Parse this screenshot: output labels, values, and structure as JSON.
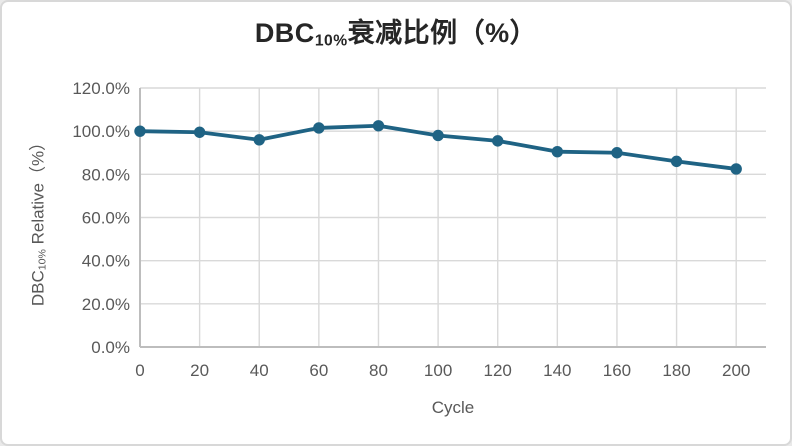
{
  "chart": {
    "title": {
      "prefix": "DBC",
      "sub": "10%",
      "suffix": "衰减比例（%）"
    },
    "y_axis_title": {
      "prefix": "DBC",
      "sub": "10%",
      "suffix": " Relative（%）"
    },
    "x_axis_title": "Cycle"
  },
  "colors": {
    "series": "#1f6384",
    "gridline": "#d9d9d9",
    "axis_line": "#bdbdbd",
    "tick_label": "#595959",
    "axis_title": "#595959",
    "title": "#262626",
    "card_border": "#d8d8d8",
    "background": "#ffffff"
  },
  "chart_data": {
    "type": "line",
    "title": "DBC10%衰减比例（%）",
    "xlabel": "Cycle",
    "ylabel": "DBC10% Relative（%）",
    "x": [
      0,
      20,
      40,
      60,
      80,
      100,
      120,
      140,
      160,
      180,
      200
    ],
    "series": [
      {
        "name": "DBC10% Relative (%)",
        "values": [
          100.0,
          99.5,
          96.0,
          101.5,
          102.5,
          98.0,
          95.5,
          90.5,
          90.0,
          86.0,
          82.5
        ]
      }
    ],
    "xlim": [
      0,
      210
    ],
    "ylim": [
      0,
      120
    ],
    "x_ticks": [
      0,
      20,
      40,
      60,
      80,
      100,
      120,
      140,
      160,
      180,
      200
    ],
    "y_ticks": [
      0,
      20,
      40,
      60,
      80,
      100,
      120
    ],
    "y_tick_decimals": 1,
    "y_tick_suffix": "%",
    "grid": true,
    "legend": false,
    "marker": "circle"
  }
}
